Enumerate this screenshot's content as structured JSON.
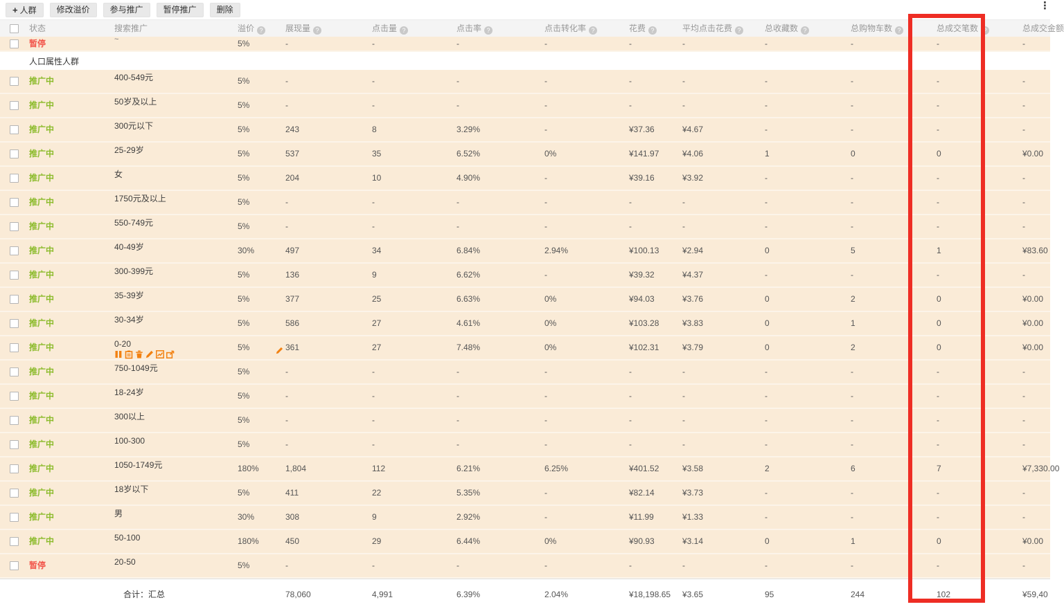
{
  "toolbar": {
    "buttons": [
      {
        "label": "人群",
        "icon": "plus"
      },
      {
        "label": "修改溢价"
      },
      {
        "label": "参与推广"
      },
      {
        "label": "暂停推广"
      },
      {
        "label": "删除"
      }
    ]
  },
  "more_icon": "⋮",
  "columns": [
    {
      "key": "status",
      "label": "状态",
      "help": false
    },
    {
      "key": "name",
      "label": "搜索推广",
      "help": false
    },
    {
      "key": "premium",
      "label": "溢价",
      "help": true
    },
    {
      "key": "impressions",
      "label": "展现量",
      "help": true
    },
    {
      "key": "clicks",
      "label": "点击量",
      "help": true
    },
    {
      "key": "ctr",
      "label": "点击率",
      "help": true
    },
    {
      "key": "cvr",
      "label": "点击转化率",
      "help": true
    },
    {
      "key": "cost",
      "label": "花费",
      "help": true
    },
    {
      "key": "avg_cost",
      "label": "平均点击花费",
      "help": true
    },
    {
      "key": "favorites",
      "label": "总收藏数",
      "help": true
    },
    {
      "key": "carts",
      "label": "总购物车数",
      "help": true
    },
    {
      "key": "deals",
      "label": "总成交笔数",
      "help": true
    },
    {
      "key": "amount",
      "label": "总成交金额",
      "help": false
    }
  ],
  "section_label": "人口属性人群",
  "rows": [
    {
      "truncated": true,
      "status": "暂停",
      "status_type": "paused",
      "name": "~",
      "premium": "5%",
      "impressions": "-",
      "clicks": "-",
      "ctr": "-",
      "cvr": "-",
      "cost": "-",
      "avg_cost": "-",
      "favorites": "-",
      "carts": "-",
      "deals": "-",
      "amount": "-"
    },
    {
      "status": "推广中",
      "status_type": "active",
      "name": "400-549元",
      "premium": "5%",
      "impressions": "-",
      "clicks": "-",
      "ctr": "-",
      "cvr": "-",
      "cost": "-",
      "avg_cost": "-",
      "favorites": "-",
      "carts": "-",
      "deals": "-",
      "amount": "-"
    },
    {
      "status": "推广中",
      "status_type": "active",
      "name": "50岁及以上",
      "premium": "5%",
      "impressions": "-",
      "clicks": "-",
      "ctr": "-",
      "cvr": "-",
      "cost": "-",
      "avg_cost": "-",
      "favorites": "-",
      "carts": "-",
      "deals": "-",
      "amount": "-"
    },
    {
      "status": "推广中",
      "status_type": "active",
      "name": "300元以下",
      "premium": "5%",
      "impressions": "243",
      "clicks": "8",
      "ctr": "3.29%",
      "cvr": "-",
      "cost": "¥37.36",
      "avg_cost": "¥4.67",
      "favorites": "-",
      "carts": "-",
      "deals": "-",
      "amount": "-"
    },
    {
      "status": "推广中",
      "status_type": "active",
      "name": "25-29岁",
      "premium": "5%",
      "impressions": "537",
      "clicks": "35",
      "ctr": "6.52%",
      "cvr": "0%",
      "cost": "¥141.97",
      "avg_cost": "¥4.06",
      "favorites": "1",
      "carts": "0",
      "deals": "0",
      "amount": "¥0.00"
    },
    {
      "status": "推广中",
      "status_type": "active",
      "name": "女",
      "premium": "5%",
      "impressions": "204",
      "clicks": "10",
      "ctr": "4.90%",
      "cvr": "-",
      "cost": "¥39.16",
      "avg_cost": "¥3.92",
      "favorites": "-",
      "carts": "-",
      "deals": "-",
      "amount": "-"
    },
    {
      "status": "推广中",
      "status_type": "active",
      "name": "1750元及以上",
      "premium": "5%",
      "impressions": "-",
      "clicks": "-",
      "ctr": "-",
      "cvr": "-",
      "cost": "-",
      "avg_cost": "-",
      "favorites": "-",
      "carts": "-",
      "deals": "-",
      "amount": "-"
    },
    {
      "status": "推广中",
      "status_type": "active",
      "name": "550-749元",
      "premium": "5%",
      "impressions": "-",
      "clicks": "-",
      "ctr": "-",
      "cvr": "-",
      "cost": "-",
      "avg_cost": "-",
      "favorites": "-",
      "carts": "-",
      "deals": "-",
      "amount": "-"
    },
    {
      "status": "推广中",
      "status_type": "active",
      "name": "40-49岁",
      "premium": "30%",
      "impressions": "497",
      "clicks": "34",
      "ctr": "6.84%",
      "cvr": "2.94%",
      "cost": "¥100.13",
      "avg_cost": "¥2.94",
      "favorites": "0",
      "carts": "5",
      "deals": "1",
      "amount": "¥83.60"
    },
    {
      "status": "推广中",
      "status_type": "active",
      "name": "300-399元",
      "premium": "5%",
      "impressions": "136",
      "clicks": "9",
      "ctr": "6.62%",
      "cvr": "-",
      "cost": "¥39.32",
      "avg_cost": "¥4.37",
      "favorites": "-",
      "carts": "-",
      "deals": "-",
      "amount": "-"
    },
    {
      "status": "推广中",
      "status_type": "active",
      "name": "35-39岁",
      "premium": "5%",
      "impressions": "377",
      "clicks": "25",
      "ctr": "6.63%",
      "cvr": "0%",
      "cost": "¥94.03",
      "avg_cost": "¥3.76",
      "favorites": "0",
      "carts": "2",
      "deals": "0",
      "amount": "¥0.00"
    },
    {
      "status": "推广中",
      "status_type": "active",
      "name": "30-34岁",
      "premium": "5%",
      "impressions": "586",
      "clicks": "27",
      "ctr": "4.61%",
      "cvr": "0%",
      "cost": "¥103.28",
      "avg_cost": "¥3.83",
      "favorites": "0",
      "carts": "1",
      "deals": "0",
      "amount": "¥0.00"
    },
    {
      "status": "推广中",
      "status_type": "active",
      "name": "0-20",
      "hover_icons": [
        "pause-icon",
        "clipboard-icon",
        "delete-icon",
        "edit-icon",
        "chart-icon",
        "export-icon"
      ],
      "premium_edit": true,
      "premium": "5%",
      "impressions": "361",
      "clicks": "27",
      "ctr": "7.48%",
      "cvr": "0%",
      "cost": "¥102.31",
      "avg_cost": "¥3.79",
      "favorites": "0",
      "carts": "2",
      "deals": "0",
      "amount": "¥0.00"
    },
    {
      "status": "推广中",
      "status_type": "active",
      "name": "750-1049元",
      "premium": "5%",
      "impressions": "-",
      "clicks": "-",
      "ctr": "-",
      "cvr": "-",
      "cost": "-",
      "avg_cost": "-",
      "favorites": "-",
      "carts": "-",
      "deals": "-",
      "amount": "-"
    },
    {
      "status": "推广中",
      "status_type": "active",
      "name": "18-24岁",
      "premium": "5%",
      "impressions": "-",
      "clicks": "-",
      "ctr": "-",
      "cvr": "-",
      "cost": "-",
      "avg_cost": "-",
      "favorites": "-",
      "carts": "-",
      "deals": "-",
      "amount": "-"
    },
    {
      "status": "推广中",
      "status_type": "active",
      "name": "300以上",
      "premium": "5%",
      "impressions": "-",
      "clicks": "-",
      "ctr": "-",
      "cvr": "-",
      "cost": "-",
      "avg_cost": "-",
      "favorites": "-",
      "carts": "-",
      "deals": "-",
      "amount": "-"
    },
    {
      "status": "推广中",
      "status_type": "active",
      "name": "100-300",
      "premium": "5%",
      "impressions": "-",
      "clicks": "-",
      "ctr": "-",
      "cvr": "-",
      "cost": "-",
      "avg_cost": "-",
      "favorites": "-",
      "carts": "-",
      "deals": "-",
      "amount": "-"
    },
    {
      "status": "推广中",
      "status_type": "active",
      "name": "1050-1749元",
      "premium": "180%",
      "impressions": "1,804",
      "clicks": "112",
      "ctr": "6.21%",
      "cvr": "6.25%",
      "cost": "¥401.52",
      "avg_cost": "¥3.58",
      "favorites": "2",
      "carts": "6",
      "deals": "7",
      "amount": "¥7,330.00"
    },
    {
      "status": "推广中",
      "status_type": "active",
      "name": "18岁以下",
      "premium": "5%",
      "impressions": "411",
      "clicks": "22",
      "ctr": "5.35%",
      "cvr": "-",
      "cost": "¥82.14",
      "avg_cost": "¥3.73",
      "favorites": "-",
      "carts": "-",
      "deals": "-",
      "amount": "-"
    },
    {
      "status": "推广中",
      "status_type": "active",
      "name": "男",
      "premium": "30%",
      "impressions": "308",
      "clicks": "9",
      "ctr": "2.92%",
      "cvr": "-",
      "cost": "¥11.99",
      "avg_cost": "¥1.33",
      "favorites": "-",
      "carts": "-",
      "deals": "-",
      "amount": "-"
    },
    {
      "status": "推广中",
      "status_type": "active",
      "name": "50-100",
      "premium": "180%",
      "impressions": "450",
      "clicks": "29",
      "ctr": "6.44%",
      "cvr": "0%",
      "cost": "¥90.93",
      "avg_cost": "¥3.14",
      "favorites": "0",
      "carts": "1",
      "deals": "0",
      "amount": "¥0.00"
    },
    {
      "status": "暂停",
      "status_type": "paused",
      "name": "20-50",
      "premium": "5%",
      "impressions": "-",
      "clicks": "-",
      "ctr": "-",
      "cvr": "-",
      "cost": "-",
      "avg_cost": "-",
      "favorites": "-",
      "carts": "-",
      "deals": "-",
      "amount": "-"
    }
  ],
  "total": {
    "label": "合计：汇总",
    "impressions": "78,060",
    "clicks": "4,991",
    "ctr": "6.39%",
    "cvr": "2.04%",
    "cost": "¥18,198.65",
    "avg_cost": "¥3.65",
    "favorites": "95",
    "carts": "244",
    "deals": "102",
    "amount": "¥59,40"
  },
  "highlight": {
    "column": "总成交笔数",
    "color": "#EE2D24"
  },
  "colors": {
    "row_bg": "#FAEBD7",
    "status_active": "#8CBB2C",
    "status_paused": "#F2574C",
    "action_icon_orange": "#F28111",
    "highlight_red": "#EE2D24",
    "header_bg": "#f4f4f4"
  }
}
